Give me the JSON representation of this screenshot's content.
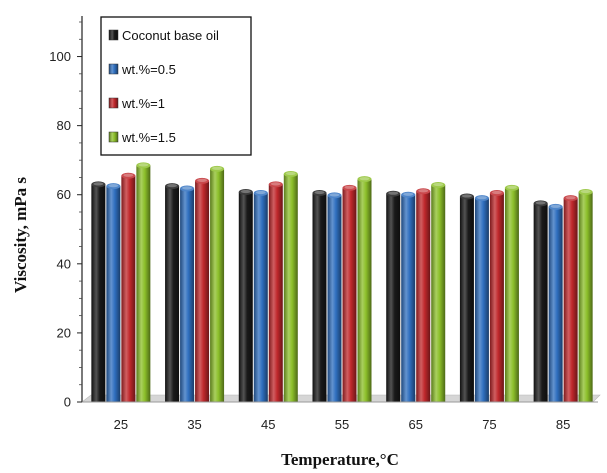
{
  "chart_data": {
    "type": "bar",
    "categories": [
      "25",
      "35",
      "45",
      "55",
      "65",
      "75",
      "85"
    ],
    "series": [
      {
        "name": "Coconut base oil",
        "color": "#1a1a1a",
        "values": [
          63.0,
          62.5,
          60.8,
          60.5,
          60.3,
          59.5,
          57.5
        ]
      },
      {
        "name": "wt.%=0.5",
        "color": "#2f6fbf",
        "values": [
          62.5,
          61.8,
          60.5,
          59.8,
          60.0,
          59.0,
          56.5
        ]
      },
      {
        "name": "wt.%=1",
        "color": "#c0282c",
        "values": [
          65.5,
          64.0,
          63.0,
          62.0,
          61.0,
          60.5,
          59.0
        ]
      },
      {
        "name": "wt.%=1.5",
        "color": "#8cbf2a",
        "values": [
          68.5,
          67.5,
          66.0,
          64.5,
          62.8,
          62.0,
          60.8
        ]
      }
    ],
    "xlabel": "Temperature,°C",
    "ylabel": "Viscosity, mPa s",
    "ylim": [
      0,
      110
    ],
    "yticks": [
      0,
      20,
      40,
      60,
      80,
      100
    ],
    "grid": false,
    "legend_position": "top-left"
  }
}
